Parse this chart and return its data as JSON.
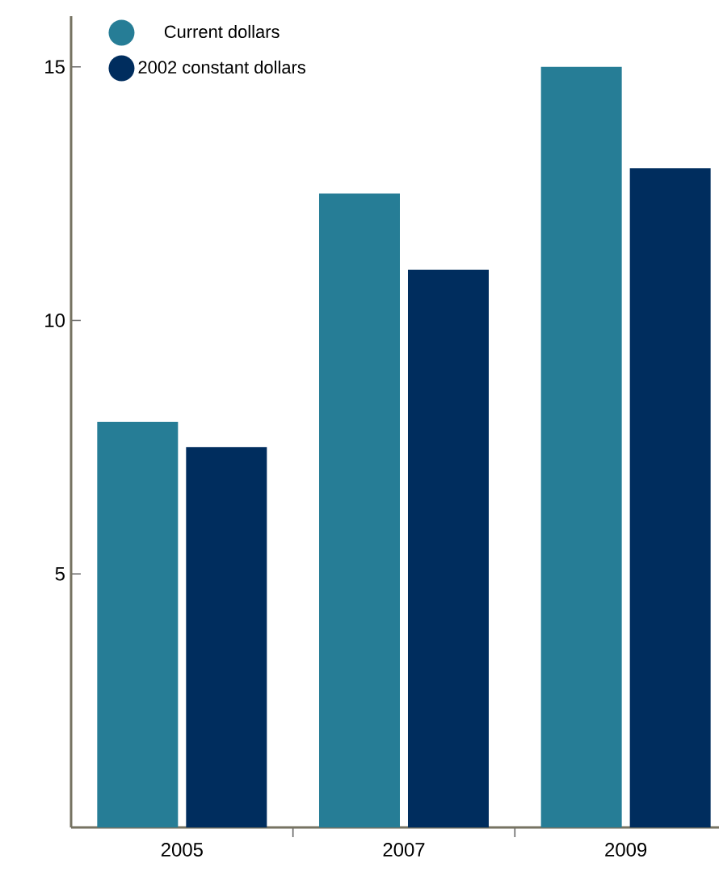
{
  "chart_data": {
    "type": "bar",
    "categories": [
      "2005",
      "2007",
      "2009"
    ],
    "series": [
      {
        "name": "Current dollars",
        "color": "#267d96",
        "values": [
          8,
          12.5,
          15
        ]
      },
      {
        "name": "2002 constant dollars",
        "color": "#002d5e",
        "values": [
          7.5,
          11,
          13
        ]
      }
    ],
    "ylim": [
      0,
      16
    ],
    "yticks": [
      5,
      10,
      15
    ],
    "grid": false,
    "legend": "top left",
    "marker": "circle"
  }
}
